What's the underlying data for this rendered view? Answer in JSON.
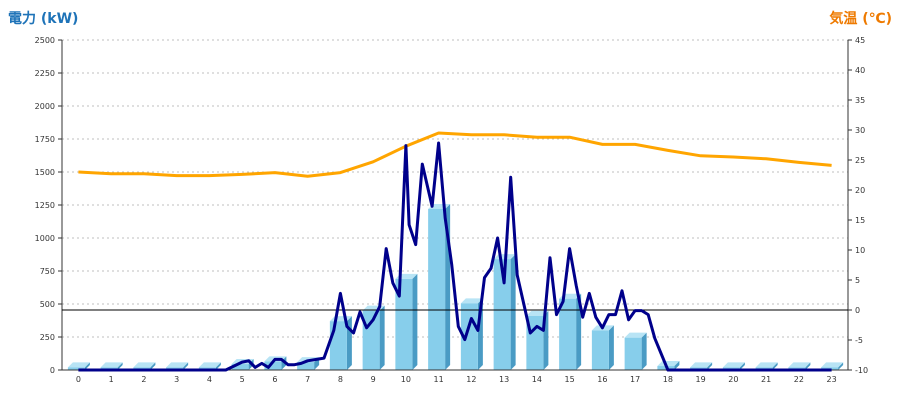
{
  "chart_data": {
    "type": "bar+line",
    "left_axis_title": "電力 (kW)",
    "right_axis_title": "気温 (℃)",
    "left_title_color": "#1e73b8",
    "right_title_color": "#ee7a00",
    "categories": [
      "0",
      "1",
      "2",
      "3",
      "4",
      "5",
      "6",
      "7",
      "8",
      "9",
      "10",
      "11",
      "12",
      "13",
      "14",
      "15",
      "16",
      "17",
      "18",
      "19",
      "20",
      "21",
      "22",
      "23"
    ],
    "y_left": {
      "min": 0,
      "max": 2500,
      "ticks": [
        "0",
        "250",
        "500",
        "750",
        "1000",
        "1250",
        "1500",
        "1750",
        "2000",
        "2250",
        "2500"
      ]
    },
    "y_right": {
      "min": -10,
      "max": 45,
      "ticks": [
        "-10",
        "-5",
        "0",
        "5",
        "10",
        "15",
        "20",
        "25",
        "30",
        "35",
        "40",
        "45"
      ]
    },
    "grid": "horizontal-dotted",
    "bars": {
      "name": "hourly power",
      "color": "#87ceeb",
      "side_color": "#4a9bc4",
      "values": [
        20,
        20,
        20,
        20,
        20,
        45,
        65,
        60,
        370,
        450,
        690,
        1220,
        505,
        840,
        410,
        540,
        300,
        245,
        30,
        20,
        20,
        20,
        20,
        20
      ]
    },
    "power_line": {
      "name": "power",
      "color": "#00008b",
      "x": [
        0,
        0.5,
        1,
        1.5,
        2,
        2.5,
        3,
        3.5,
        4,
        4.5,
        5,
        5.2,
        5.4,
        5.6,
        5.8,
        6,
        6.2,
        6.4,
        6.6,
        6.8,
        7,
        7.5,
        7.8,
        8,
        8.2,
        8.4,
        8.6,
        8.8,
        9,
        9.2,
        9.4,
        9.6,
        9.8,
        10,
        10.1,
        10.3,
        10.5,
        10.8,
        11,
        11.2,
        11.4,
        11.6,
        11.8,
        12,
        12.2,
        12.4,
        12.6,
        12.8,
        13,
        13.2,
        13.4,
        13.6,
        13.8,
        14,
        14.2,
        14.4,
        14.6,
        14.8,
        15,
        15.2,
        15.4,
        15.6,
        15.8,
        16,
        16.2,
        16.4,
        16.6,
        16.8,
        17,
        17.2,
        17.4,
        17.6,
        18,
        18.5,
        19,
        20,
        21,
        22,
        23
      ],
      "y": [
        0,
        0,
        0,
        0,
        0,
        0,
        0,
        0,
        0,
        0,
        60,
        70,
        20,
        50,
        20,
        80,
        80,
        40,
        40,
        50,
        70,
        90,
        300,
        580,
        330,
        280,
        440,
        320,
        380,
        480,
        920,
        660,
        560,
        1700,
        1100,
        950,
        1560,
        1240,
        1720,
        1150,
        800,
        330,
        230,
        390,
        300,
        700,
        770,
        1000,
        660,
        1460,
        720,
        500,
        280,
        330,
        300,
        850,
        420,
        520,
        920,
        640,
        400,
        580,
        400,
        320,
        420,
        420,
        600,
        380,
        450,
        450,
        420,
        240,
        0,
        0,
        0,
        0,
        0,
        0,
        0
      ]
    },
    "temperature_line": {
      "name": "temperature",
      "color": "#ffa500",
      "x": [
        0,
        1,
        2,
        3,
        4,
        5,
        6,
        7,
        8,
        9,
        10,
        11,
        12,
        13,
        14,
        15,
        16,
        17,
        18,
        19,
        20,
        21,
        22,
        23
      ],
      "y": [
        23.0,
        22.7,
        22.7,
        22.4,
        22.4,
        22.6,
        22.9,
        22.3,
        22.9,
        24.7,
        27.3,
        29.5,
        29.2,
        29.2,
        28.8,
        28.8,
        27.6,
        27.6,
        26.6,
        25.7,
        25.5,
        25.2,
        24.6,
        24.1
      ]
    },
    "zero_line": {
      "axis": "right",
      "value": 0
    },
    "legend": "none"
  }
}
